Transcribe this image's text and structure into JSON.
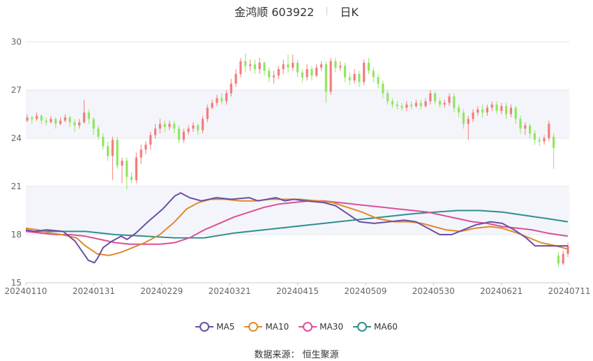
{
  "title": {
    "stock": "金鸿顺 603922",
    "period": "日K"
  },
  "source": "数据来源： 恒生聚源",
  "colors": {
    "up": "#f47c7c",
    "down": "#91e65e",
    "grid": "#e6e6e6",
    "band": "#f4f5fa",
    "axis_text": "#666666",
    "MA5": "#6a4fa3",
    "MA10": "#e08a2c",
    "MA30": "#d9509a",
    "MA60": "#2f8f8f"
  },
  "chart_data": {
    "type": "candlestick",
    "ylim": [
      15,
      30
    ],
    "yticks": [
      "30",
      "27",
      "24",
      "21",
      "18",
      "15"
    ],
    "xticks": [
      "20240110",
      "20240131",
      "20240229",
      "20240321",
      "20240415",
      "20240509",
      "20240530",
      "20240621",
      "20240711"
    ],
    "legend": [
      {
        "name": "MA5",
        "color": "#6a4fa3"
      },
      {
        "name": "MA10",
        "color": "#e08a2c"
      },
      {
        "name": "MA30",
        "color": "#d9509a"
      },
      {
        "name": "MA60",
        "color": "#2f8f8f"
      }
    ],
    "candles_ohlc": [
      [
        25.1,
        25.3,
        25.5,
        25.0
      ],
      [
        25.3,
        25.2,
        25.4,
        24.9
      ],
      [
        25.2,
        25.4,
        25.6,
        25.1
      ],
      [
        25.4,
        25.1,
        25.5,
        24.9
      ],
      [
        25.1,
        25.0,
        25.3,
        24.8
      ],
      [
        25.0,
        25.2,
        25.4,
        24.9
      ],
      [
        25.2,
        24.9,
        25.3,
        24.6
      ],
      [
        24.9,
        25.1,
        25.3,
        24.8
      ],
      [
        25.1,
        25.3,
        25.5,
        25.0
      ],
      [
        25.3,
        25.0,
        25.4,
        24.7
      ],
      [
        25.0,
        24.8,
        25.2,
        24.4
      ],
      [
        24.8,
        25.0,
        25.2,
        24.6
      ],
      [
        25.0,
        25.6,
        26.4,
        24.9
      ],
      [
        25.6,
        25.2,
        25.8,
        24.9
      ],
      [
        25.2,
        24.6,
        25.3,
        24.2
      ],
      [
        24.6,
        24.1,
        24.8,
        23.9
      ],
      [
        24.1,
        23.5,
        24.3,
        23.3
      ],
      [
        23.5,
        22.9,
        23.8,
        22.6
      ],
      [
        22.9,
        23.9,
        24.1,
        21.4
      ],
      [
        23.9,
        22.3,
        24.1,
        22.1
      ],
      [
        22.3,
        22.6,
        22.8,
        21.2
      ],
      [
        22.6,
        21.6,
        22.8,
        20.8
      ],
      [
        21.6,
        21.4,
        21.9,
        21.2
      ],
      [
        21.4,
        22.8,
        23.1,
        21.2
      ],
      [
        22.8,
        23.3,
        23.6,
        22.4
      ],
      [
        23.3,
        23.6,
        23.8,
        23.0
      ],
      [
        23.6,
        24.2,
        24.4,
        23.3
      ],
      [
        24.2,
        24.6,
        24.9,
        24.0
      ],
      [
        24.6,
        24.9,
        25.2,
        24.3
      ],
      [
        24.9,
        24.7,
        25.1,
        24.4
      ],
      [
        24.7,
        24.9,
        25.1,
        24.5
      ],
      [
        24.9,
        24.6,
        25.1,
        24.3
      ],
      [
        24.6,
        23.9,
        24.8,
        23.7
      ],
      [
        23.9,
        24.4,
        24.6,
        23.7
      ],
      [
        24.4,
        24.6,
        24.8,
        24.2
      ],
      [
        24.6,
        24.8,
        25.0,
        24.4
      ],
      [
        24.8,
        24.5,
        24.9,
        24.2
      ],
      [
        24.5,
        25.2,
        25.4,
        24.3
      ],
      [
        25.2,
        25.9,
        26.1,
        25.0
      ],
      [
        25.9,
        26.2,
        26.4,
        25.8
      ],
      [
        26.2,
        26.5,
        26.7,
        26.0
      ],
      [
        26.5,
        26.3,
        26.8,
        26.1
      ],
      [
        26.3,
        26.8,
        27.0,
        26.1
      ],
      [
        26.8,
        27.4,
        27.7,
        26.6
      ],
      [
        27.4,
        28.0,
        28.3,
        27.2
      ],
      [
        28.0,
        28.8,
        29.0,
        27.8
      ],
      [
        28.8,
        28.5,
        29.3,
        28.1
      ],
      [
        28.5,
        28.6,
        28.9,
        28.2
      ],
      [
        28.6,
        28.3,
        28.9,
        28.0
      ],
      [
        28.3,
        28.7,
        29.0,
        28.0
      ],
      [
        28.7,
        28.2,
        28.8,
        27.9
      ],
      [
        28.2,
        27.8,
        28.4,
        27.5
      ],
      [
        27.8,
        27.9,
        28.2,
        27.4
      ],
      [
        27.9,
        28.3,
        28.5,
        27.7
      ],
      [
        28.3,
        28.6,
        28.9,
        28.0
      ],
      [
        28.6,
        28.4,
        29.2,
        28.1
      ],
      [
        28.4,
        28.7,
        29.2,
        28.2
      ],
      [
        28.7,
        28.1,
        28.9,
        27.8
      ],
      [
        28.1,
        27.8,
        28.3,
        27.5
      ],
      [
        27.8,
        28.3,
        28.6,
        27.6
      ],
      [
        28.3,
        27.9,
        28.5,
        27.6
      ],
      [
        27.9,
        28.4,
        28.6,
        27.8
      ],
      [
        28.4,
        28.6,
        28.8,
        28.2
      ],
      [
        28.6,
        26.9,
        28.8,
        26.2
      ],
      [
        26.9,
        28.8,
        29.0,
        26.7
      ],
      [
        28.8,
        28.4,
        29.0,
        28.1
      ],
      [
        28.4,
        28.5,
        28.8,
        28.2
      ],
      [
        28.5,
        27.8,
        28.7,
        27.5
      ],
      [
        27.8,
        27.6,
        28.1,
        27.3
      ],
      [
        27.6,
        28.0,
        28.3,
        27.4
      ],
      [
        28.0,
        27.5,
        28.2,
        27.2
      ],
      [
        27.5,
        28.7,
        28.9,
        27.3
      ],
      [
        28.7,
        28.2,
        29.0,
        28.0
      ],
      [
        28.2,
        27.8,
        28.4,
        27.5
      ],
      [
        27.8,
        27.4,
        28.0,
        27.1
      ],
      [
        27.4,
        26.8,
        27.6,
        26.5
      ],
      [
        26.8,
        26.3,
        27.0,
        26.1
      ],
      [
        26.3,
        26.1,
        26.5,
        25.9
      ],
      [
        26.1,
        26.0,
        26.3,
        25.8
      ],
      [
        26.0,
        25.9,
        26.2,
        25.7
      ],
      [
        25.9,
        26.1,
        26.3,
        25.7
      ],
      [
        26.1,
        26.0,
        26.3,
        25.8
      ],
      [
        26.0,
        26.2,
        26.4,
        25.9
      ],
      [
        26.2,
        26.0,
        26.4,
        25.8
      ],
      [
        26.0,
        26.3,
        26.5,
        25.9
      ],
      [
        26.3,
        26.8,
        27.0,
        26.1
      ],
      [
        26.8,
        26.3,
        26.9,
        26.1
      ],
      [
        26.3,
        26.1,
        26.5,
        25.9
      ],
      [
        26.1,
        26.2,
        26.4,
        25.9
      ],
      [
        26.2,
        26.6,
        26.8,
        26.0
      ],
      [
        26.6,
        25.9,
        26.8,
        25.6
      ],
      [
        25.9,
        25.6,
        26.1,
        25.3
      ],
      [
        25.6,
        24.9,
        25.8,
        24.6
      ],
      [
        24.9,
        25.2,
        25.4,
        23.9
      ],
      [
        25.2,
        25.6,
        25.8,
        25.0
      ],
      [
        25.6,
        25.8,
        26.0,
        25.4
      ],
      [
        25.8,
        25.6,
        26.1,
        25.3
      ],
      [
        25.6,
        25.9,
        26.1,
        25.4
      ],
      [
        25.9,
        26.1,
        26.3,
        25.7
      ],
      [
        26.1,
        25.7,
        26.3,
        25.5
      ],
      [
        25.7,
        26.0,
        26.2,
        25.5
      ],
      [
        26.0,
        25.5,
        26.2,
        25.2
      ],
      [
        25.5,
        25.9,
        26.1,
        25.3
      ],
      [
        25.9,
        25.2,
        26.0,
        24.9
      ],
      [
        25.2,
        24.6,
        25.4,
        24.3
      ],
      [
        24.6,
        24.8,
        25.0,
        24.2
      ],
      [
        24.8,
        24.3,
        24.9,
        24.0
      ],
      [
        24.3,
        23.9,
        24.5,
        23.6
      ],
      [
        23.9,
        23.8,
        24.1,
        23.5
      ],
      [
        23.8,
        24.0,
        24.2,
        23.6
      ],
      [
        24.0,
        24.9,
        25.1,
        23.8
      ],
      [
        24.1,
        23.4,
        24.3,
        22.1
      ],
      [
        16.7,
        16.2,
        16.9,
        16.0
      ],
      [
        16.2,
        16.8,
        17.0,
        16.1
      ],
      [
        16.8,
        17.3,
        17.5,
        16.6
      ]
    ],
    "ma5": [
      [
        0,
        18.3
      ],
      [
        6,
        18.2
      ],
      [
        14,
        18.3
      ],
      [
        25,
        18.2
      ],
      [
        33,
        17.6
      ],
      [
        42,
        16.4
      ],
      [
        46,
        16.25
      ],
      [
        48,
        16.5
      ],
      [
        52,
        17.2
      ],
      [
        58,
        17.6
      ],
      [
        64,
        17.9
      ],
      [
        68,
        17.7
      ],
      [
        74,
        18.1
      ],
      [
        82,
        18.8
      ],
      [
        92,
        19.6
      ],
      [
        100,
        20.4
      ],
      [
        104,
        20.6
      ],
      [
        110,
        20.3
      ],
      [
        118,
        20.1
      ],
      [
        128,
        20.3
      ],
      [
        138,
        20.2
      ],
      [
        150,
        20.3
      ],
      [
        156,
        20.1
      ],
      [
        162,
        20.2
      ],
      [
        168,
        20.3
      ],
      [
        174,
        20.1
      ],
      [
        180,
        20.2
      ],
      [
        188,
        20.1
      ],
      [
        200,
        20.0
      ],
      [
        208,
        19.8
      ],
      [
        216,
        19.3
      ],
      [
        224,
        18.8
      ],
      [
        234,
        18.7
      ],
      [
        244,
        18.8
      ],
      [
        254,
        18.9
      ],
      [
        262,
        18.8
      ],
      [
        270,
        18.4
      ],
      [
        278,
        18.0
      ],
      [
        286,
        18.0
      ],
      [
        294,
        18.3
      ],
      [
        302,
        18.6
      ],
      [
        312,
        18.8
      ],
      [
        320,
        18.7
      ],
      [
        328,
        18.3
      ],
      [
        336,
        17.8
      ],
      [
        342,
        17.3
      ],
      [
        350,
        17.3
      ],
      [
        356,
        17.3
      ],
      [
        364,
        17.3
      ]
    ],
    "ma10": [
      [
        0,
        18.4
      ],
      [
        8,
        18.3
      ],
      [
        16,
        18.1
      ],
      [
        24,
        18.0
      ],
      [
        34,
        17.8
      ],
      [
        40,
        17.3
      ],
      [
        48,
        16.8
      ],
      [
        56,
        16.7
      ],
      [
        64,
        16.9
      ],
      [
        72,
        17.2
      ],
      [
        80,
        17.5
      ],
      [
        90,
        18.0
      ],
      [
        100,
        18.8
      ],
      [
        108,
        19.6
      ],
      [
        116,
        20.0
      ],
      [
        124,
        20.2
      ],
      [
        134,
        20.2
      ],
      [
        144,
        20.1
      ],
      [
        154,
        20.1
      ],
      [
        164,
        20.2
      ],
      [
        174,
        20.2
      ],
      [
        184,
        20.2
      ],
      [
        196,
        20.1
      ],
      [
        206,
        20.0
      ],
      [
        216,
        19.7
      ],
      [
        226,
        19.4
      ],
      [
        236,
        19.0
      ],
      [
        248,
        18.8
      ],
      [
        258,
        18.8
      ],
      [
        266,
        18.7
      ],
      [
        274,
        18.5
      ],
      [
        282,
        18.3
      ],
      [
        292,
        18.2
      ],
      [
        302,
        18.4
      ],
      [
        312,
        18.5
      ],
      [
        320,
        18.4
      ],
      [
        330,
        18.1
      ],
      [
        338,
        17.8
      ],
      [
        346,
        17.5
      ],
      [
        356,
        17.3
      ],
      [
        364,
        17.1
      ]
    ],
    "ma30": [
      [
        0,
        18.2
      ],
      [
        10,
        18.1
      ],
      [
        20,
        18.0
      ],
      [
        30,
        18.0
      ],
      [
        40,
        17.9
      ],
      [
        50,
        17.7
      ],
      [
        60,
        17.5
      ],
      [
        70,
        17.4
      ],
      [
        80,
        17.4
      ],
      [
        90,
        17.4
      ],
      [
        100,
        17.5
      ],
      [
        110,
        17.8
      ],
      [
        120,
        18.3
      ],
      [
        130,
        18.7
      ],
      [
        140,
        19.1
      ],
      [
        150,
        19.4
      ],
      [
        160,
        19.7
      ],
      [
        170,
        19.9
      ],
      [
        180,
        20.0
      ],
      [
        190,
        20.1
      ],
      [
        200,
        20.1
      ],
      [
        210,
        20.0
      ],
      [
        220,
        19.9
      ],
      [
        230,
        19.8
      ],
      [
        240,
        19.7
      ],
      [
        250,
        19.6
      ],
      [
        260,
        19.5
      ],
      [
        270,
        19.4
      ],
      [
        280,
        19.2
      ],
      [
        290,
        19.0
      ],
      [
        300,
        18.8
      ],
      [
        310,
        18.7
      ],
      [
        320,
        18.5
      ],
      [
        330,
        18.4
      ],
      [
        340,
        18.3
      ],
      [
        350,
        18.1
      ],
      [
        364,
        17.9
      ]
    ],
    "ma60": [
      [
        0,
        18.2
      ],
      [
        20,
        18.2
      ],
      [
        40,
        18.2
      ],
      [
        60,
        18.0
      ],
      [
        80,
        17.9
      ],
      [
        100,
        17.8
      ],
      [
        120,
        17.8
      ],
      [
        140,
        18.1
      ],
      [
        160,
        18.3
      ],
      [
        180,
        18.5
      ],
      [
        200,
        18.7
      ],
      [
        220,
        18.9
      ],
      [
        240,
        19.1
      ],
      [
        260,
        19.3
      ],
      [
        275,
        19.4
      ],
      [
        290,
        19.5
      ],
      [
        305,
        19.5
      ],
      [
        320,
        19.4
      ],
      [
        335,
        19.2
      ],
      [
        350,
        19.0
      ],
      [
        364,
        18.8
      ]
    ]
  }
}
